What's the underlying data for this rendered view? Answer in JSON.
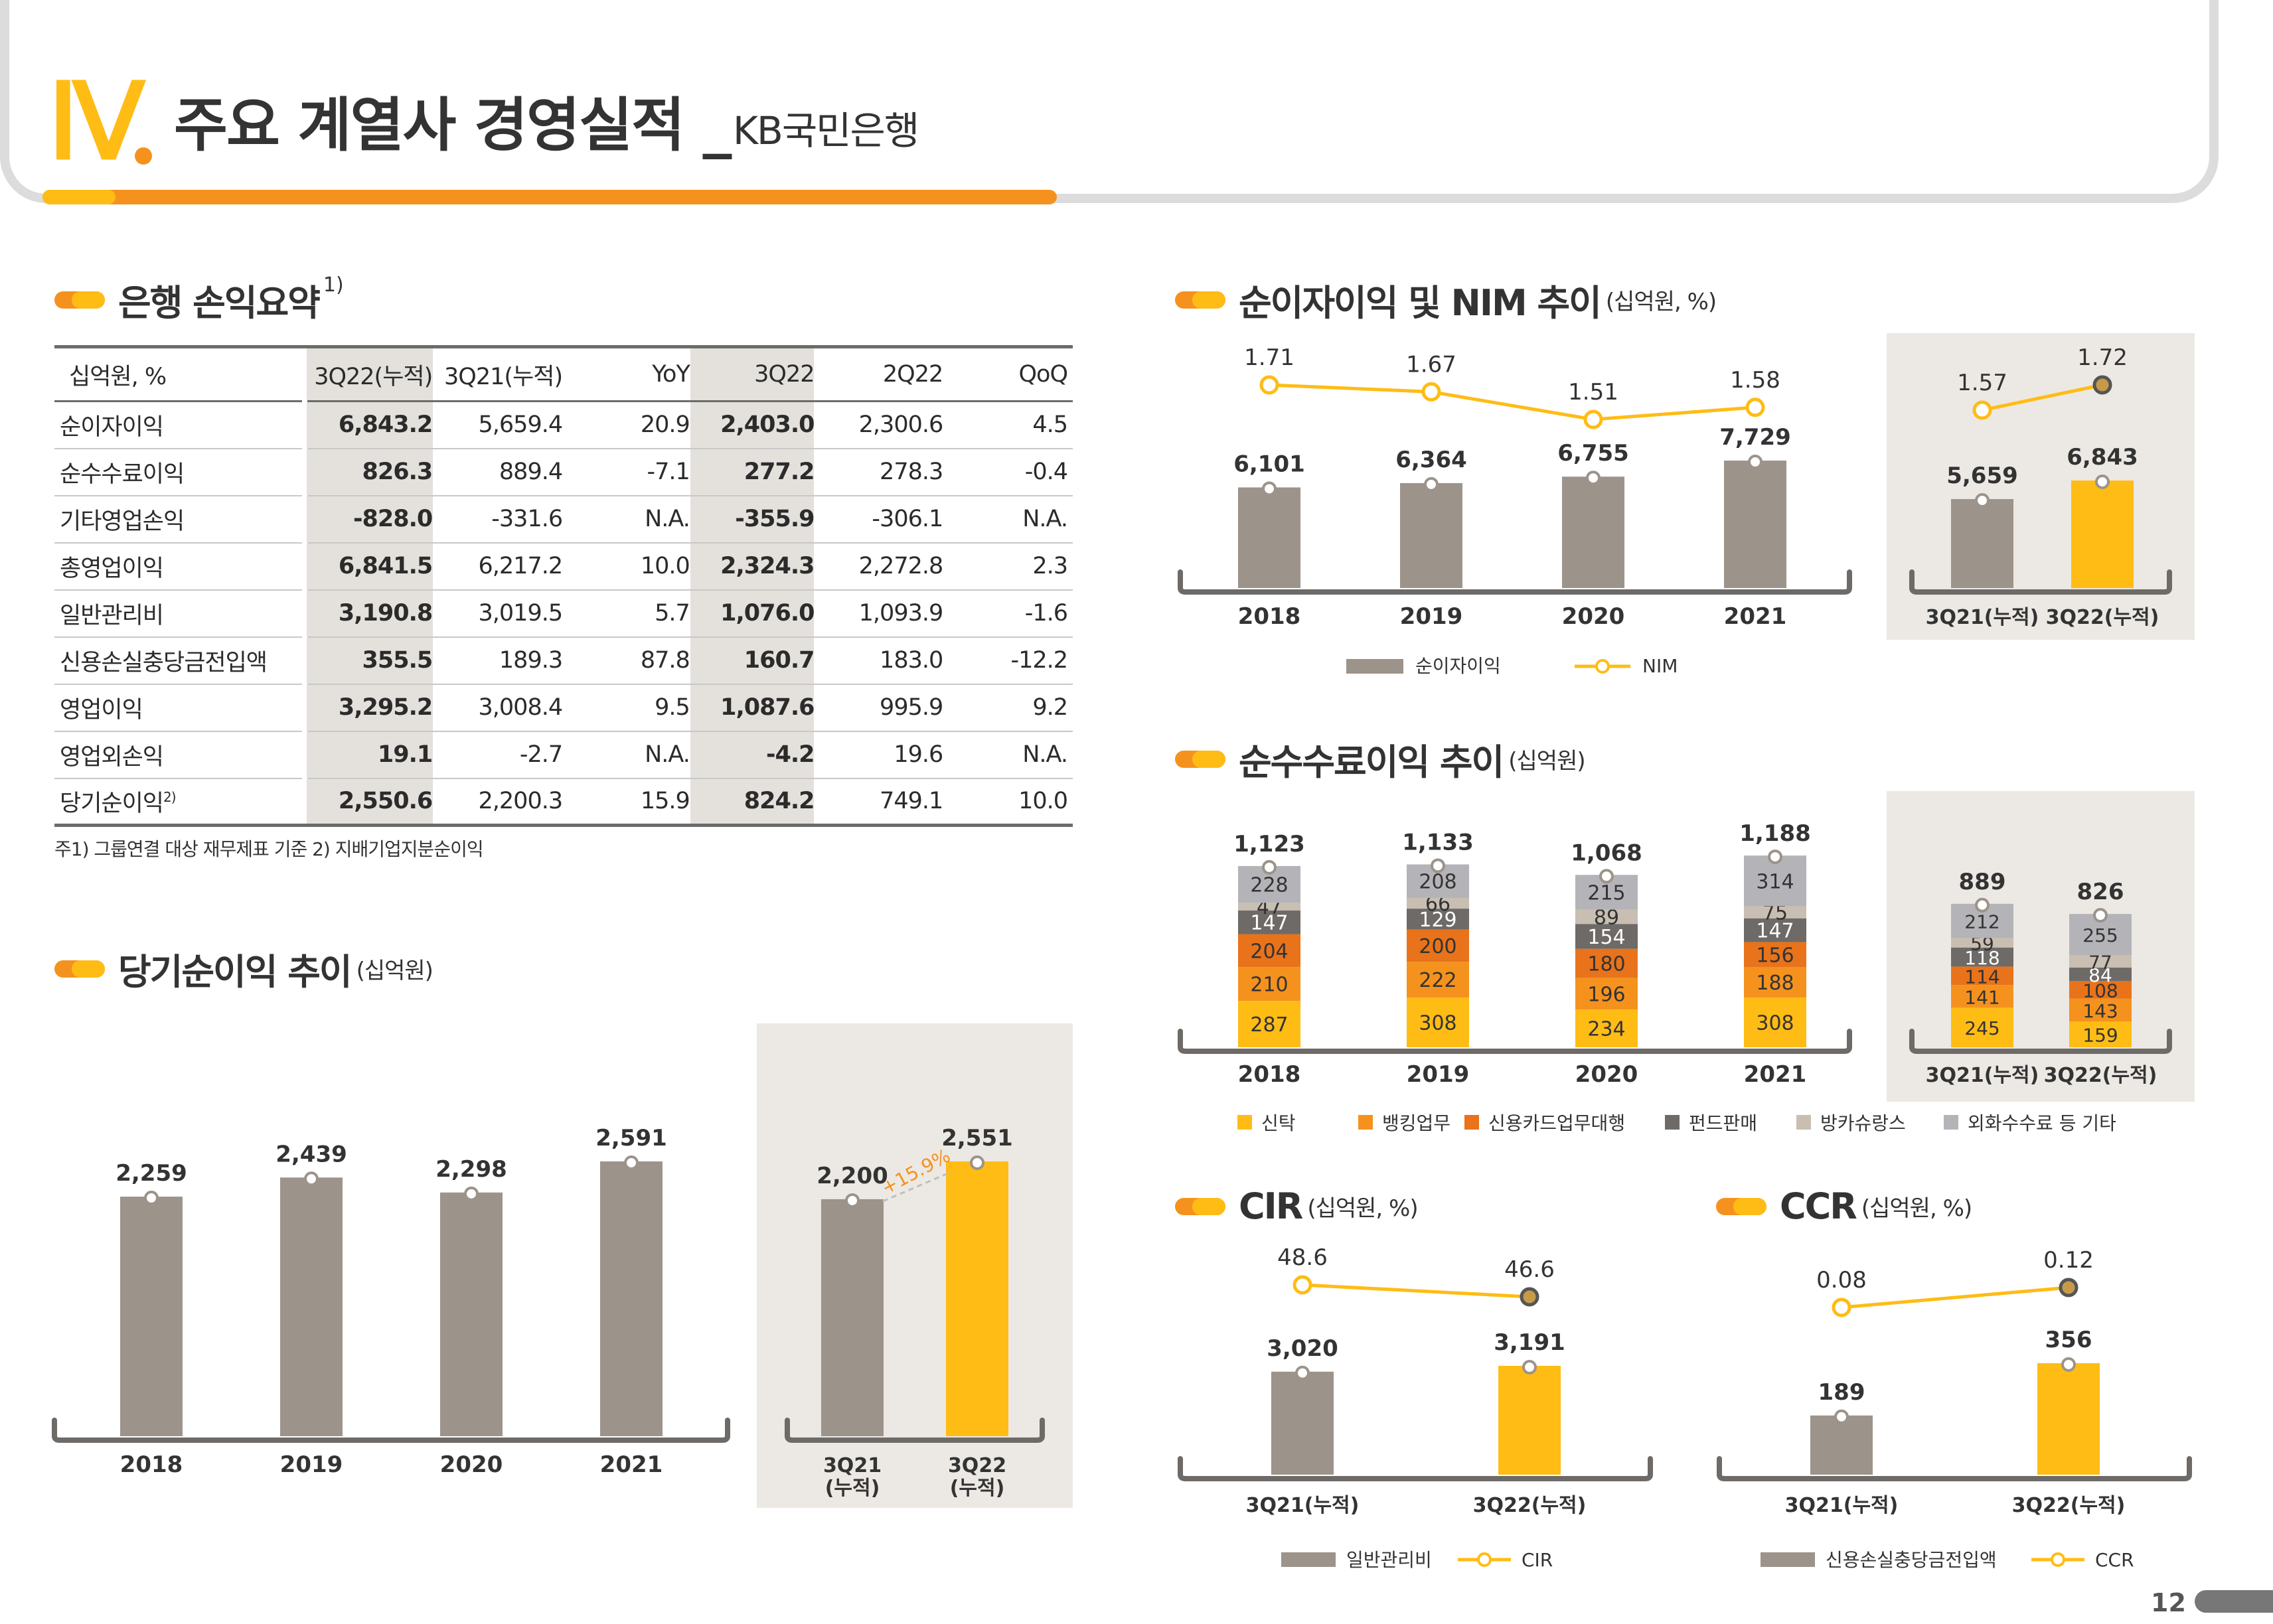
{
  "header": {
    "roman": "Ⅳ",
    "title": "주요 계열사 경영실적 _",
    "subtitle": "KB국민은행"
  },
  "colors": {
    "gray": "#9c938a",
    "yellow": "#ffbc15",
    "orange": "#f5921e",
    "dark_orange": "#e8731b",
    "brown": "#6e6a67",
    "beige": "#c8beb1",
    "silver": "#b4b4b8",
    "panel": "#ece9e4"
  },
  "pl_summary": {
    "title": "은행 손익요약",
    "title_sup": "1)",
    "headers": [
      "십억원, %",
      "3Q22(누적)",
      "3Q21(누적)",
      "YoY",
      "3Q22",
      "2Q22",
      "QoQ"
    ],
    "rows": [
      {
        "label": "순이자이익",
        "sup": "",
        "values": [
          "6,843.2",
          "5,659.4",
          "20.9",
          "2,403.0",
          "2,300.6",
          "4.5"
        ]
      },
      {
        "label": "순수수료이익",
        "sup": "",
        "values": [
          "826.3",
          "889.4",
          "-7.1",
          "277.2",
          "278.3",
          "-0.4"
        ]
      },
      {
        "label": "기타영업손익",
        "sup": "",
        "values": [
          "-828.0",
          "-331.6",
          "N.A.",
          "-355.9",
          "-306.1",
          "N.A."
        ]
      },
      {
        "label": "총영업이익",
        "sup": "",
        "values": [
          "6,841.5",
          "6,217.2",
          "10.0",
          "2,324.3",
          "2,272.8",
          "2.3"
        ]
      },
      {
        "label": "일반관리비",
        "sup": "",
        "values": [
          "3,190.8",
          "3,019.5",
          "5.7",
          "1,076.0",
          "1,093.9",
          "-1.6"
        ]
      },
      {
        "label": "신용손실충당금전입액",
        "sup": "",
        "values": [
          "355.5",
          "189.3",
          "87.8",
          "160.7",
          "183.0",
          "-12.2"
        ]
      },
      {
        "label": "영업이익",
        "sup": "",
        "values": [
          "3,295.2",
          "3,008.4",
          "9.5",
          "1,087.6",
          "995.9",
          "9.2"
        ]
      },
      {
        "label": "영업외손익",
        "sup": "",
        "values": [
          "19.1",
          "-2.7",
          "N.A.",
          "-4.2",
          "19.6",
          "N.A."
        ]
      },
      {
        "label": "당기순이익",
        "sup": "2)",
        "values": [
          "2,550.6",
          "2,200.3",
          "15.9",
          "824.2",
          "749.1",
          "10.0"
        ]
      }
    ],
    "note": "주1) 그룹연결 대상 재무제표 기준   2) 지배기업지분순이익"
  },
  "sections": {
    "net_income": {
      "title": "당기순이익 추이",
      "unit": "(십억원)"
    },
    "nii": {
      "title": "순이자이익 및 NIM 추이",
      "unit": "(십억원, %)"
    },
    "fee": {
      "title": "순수수료이익 추이",
      "unit": "(십억원)"
    },
    "cir": {
      "title": "CIR",
      "unit": "(십억원, %)"
    },
    "ccr": {
      "title": "CCR",
      "unit": "(십억원, %)"
    }
  },
  "chart_data": [
    {
      "id": "net_income_annual",
      "type": "bar",
      "categories": [
        "2018",
        "2019",
        "2020",
        "2021"
      ],
      "values": [
        2259,
        2439,
        2298,
        2591
      ],
      "labels": [
        "2,259",
        "2,439",
        "2,298",
        "2,591"
      ]
    },
    {
      "id": "net_income_ytd",
      "type": "bar",
      "categories": [
        "3Q21\n(누적)",
        "3Q22\n(누적)"
      ],
      "values": [
        2200,
        2551
      ],
      "labels": [
        "2,200",
        "2,551"
      ],
      "annotation": "+15.9%"
    },
    {
      "id": "nii_annual",
      "type": "bar+line",
      "categories": [
        "2018",
        "2019",
        "2020",
        "2021"
      ],
      "series": [
        {
          "name": "순이자이익",
          "type": "bar",
          "values": [
            6101,
            6364,
            6755,
            7729
          ],
          "labels": [
            "6,101",
            "6,364",
            "6,755",
            "7,729"
          ]
        },
        {
          "name": "NIM",
          "type": "line",
          "values": [
            1.71,
            1.67,
            1.51,
            1.58
          ],
          "labels": [
            "1.71",
            "1.67",
            "1.51",
            "1.58"
          ]
        }
      ]
    },
    {
      "id": "nii_ytd",
      "type": "bar+line",
      "categories": [
        "3Q21(누적)",
        "3Q22(누적)"
      ],
      "series": [
        {
          "name": "순이자이익",
          "type": "bar",
          "values": [
            5659,
            6843
          ],
          "labels": [
            "5,659",
            "6,843"
          ]
        },
        {
          "name": "NIM",
          "type": "line",
          "values": [
            1.57,
            1.72
          ],
          "labels": [
            "1.57",
            "1.72"
          ]
        }
      ]
    },
    {
      "id": "fee_annual",
      "type": "stacked-bar",
      "categories": [
        "2018",
        "2019",
        "2020",
        "2021"
      ],
      "totals": [
        "1,123",
        "1,133",
        "1,068",
        "1,188"
      ],
      "series": [
        {
          "name": "신탁",
          "values": [
            287,
            308,
            234,
            308
          ]
        },
        {
          "name": "뱅킹업무",
          "values": [
            210,
            222,
            196,
            188
          ]
        },
        {
          "name": "신용카드업무대행",
          "values": [
            204,
            200,
            180,
            156
          ]
        },
        {
          "name": "펀드판매",
          "values": [
            147,
            129,
            154,
            147
          ]
        },
        {
          "name": "방카슈랑스",
          "values": [
            47,
            66,
            89,
            75
          ]
        },
        {
          "name": "외화수수료 등 기타",
          "values": [
            228,
            208,
            215,
            314
          ]
        }
      ]
    },
    {
      "id": "fee_ytd",
      "type": "stacked-bar",
      "categories": [
        "3Q21(누적)",
        "3Q22(누적)"
      ],
      "totals": [
        "889",
        "826"
      ],
      "series": [
        {
          "name": "신탁",
          "values": [
            245,
            159
          ]
        },
        {
          "name": "뱅킹업무",
          "values": [
            141,
            143
          ]
        },
        {
          "name": "신용카드업무대행",
          "values": [
            114,
            108
          ]
        },
        {
          "name": "펀드판매",
          "values": [
            118,
            84
          ]
        },
        {
          "name": "방카슈랑스",
          "values": [
            59,
            77
          ]
        },
        {
          "name": "외화수수료 등 기타",
          "values": [
            212,
            255
          ]
        }
      ]
    },
    {
      "id": "cir",
      "type": "bar+line",
      "categories": [
        "3Q21(누적)",
        "3Q22(누적)"
      ],
      "series": [
        {
          "name": "일반관리비",
          "type": "bar",
          "values": [
            3020,
            3191
          ],
          "labels": [
            "3,020",
            "3,191"
          ]
        },
        {
          "name": "CIR",
          "type": "line",
          "values": [
            48.6,
            46.6
          ],
          "labels": [
            "48.6",
            "46.6"
          ]
        }
      ]
    },
    {
      "id": "ccr",
      "type": "bar+line",
      "categories": [
        "3Q21(누적)",
        "3Q22(누적)"
      ],
      "series": [
        {
          "name": "신용손실충당금전입액",
          "type": "bar",
          "values": [
            189,
            356
          ],
          "labels": [
            "189",
            "356"
          ]
        },
        {
          "name": "CCR",
          "type": "line",
          "values": [
            0.08,
            0.12
          ],
          "labels": [
            "0.08",
            "0.12"
          ]
        }
      ]
    }
  ],
  "page_number": "12"
}
